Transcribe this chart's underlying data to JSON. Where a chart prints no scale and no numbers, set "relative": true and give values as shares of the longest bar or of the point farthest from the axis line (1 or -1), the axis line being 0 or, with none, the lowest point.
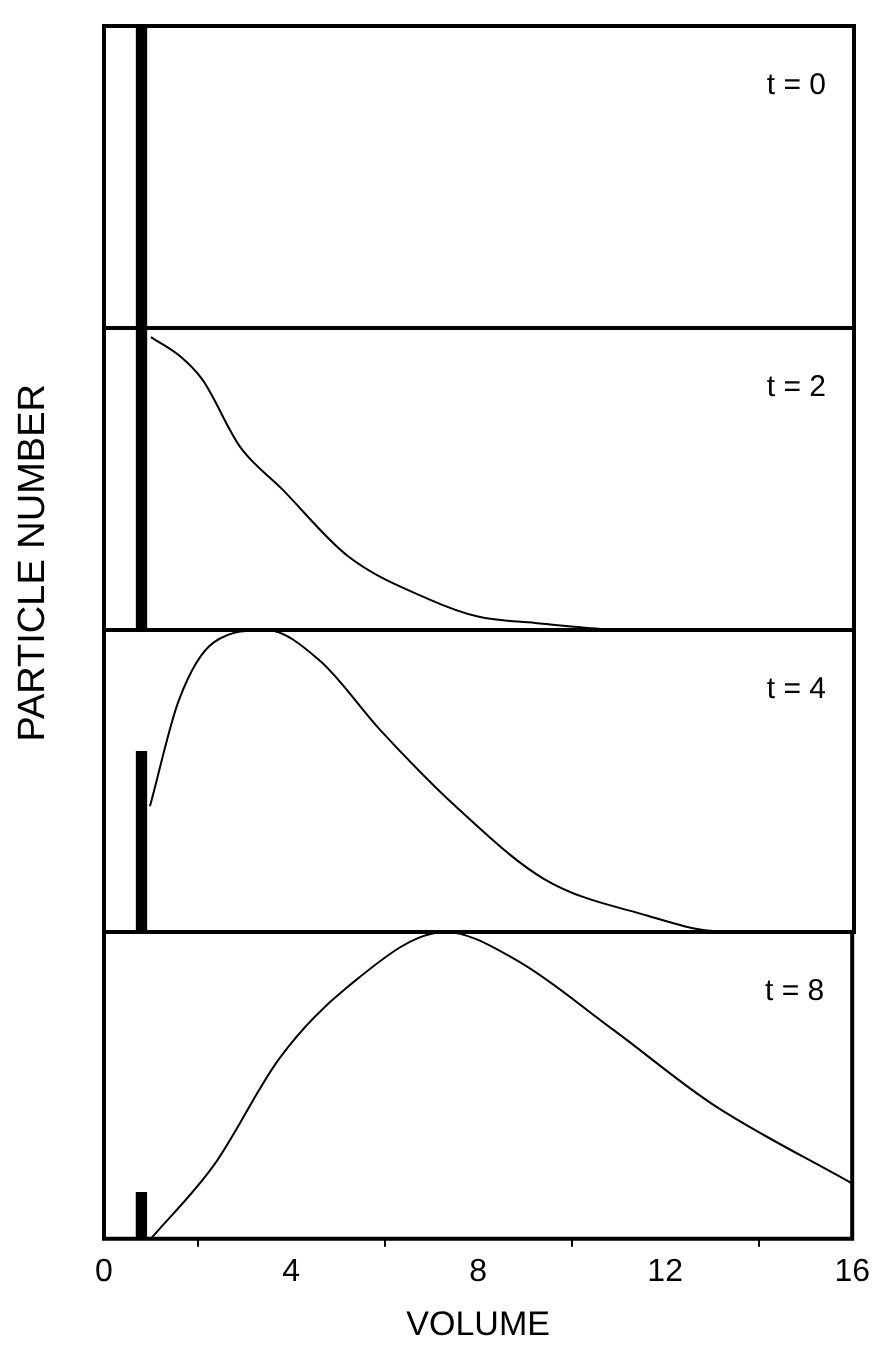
{
  "chart_data": [
    {
      "type": "bar",
      "title": "t = 0",
      "ylabel": "PARTICLE NUMBER",
      "relative": true,
      "xlim": [
        0,
        16
      ],
      "xticks": [
        0,
        4,
        8,
        12,
        16
      ],
      "tick_labels": false,
      "series": [
        {
          "color": "#000000",
          "x": [
            0.8
          ],
          "values": [
            1
          ]
        }
      ]
    },
    {
      "type": "line",
      "title": "t = 2",
      "relative": true,
      "xlim": [
        0,
        16
      ],
      "xticks": [
        0,
        4,
        8,
        12,
        16
      ],
      "tick_labels": false,
      "marker": "none",
      "series": [
        {
          "type": "bar",
          "color": "#000000",
          "x": [
            0.8
          ],
          "values": [
            1
          ]
        },
        {
          "color": "#000000",
          "x": [
            1,
            1.6,
            2.1,
            2.9,
            3.8,
            5.2,
            6.9,
            8,
            9.2,
            10.6,
            12,
            16
          ],
          "values": [
            0.97,
            0.91,
            0.83,
            0.61,
            0.47,
            0.25,
            0.11,
            0.05,
            0.03,
            0.01,
            0,
            0
          ]
        }
      ]
    },
    {
      "type": "line",
      "title": "t = 4",
      "relative": true,
      "xlim": [
        0,
        16
      ],
      "xticks": [
        0,
        4,
        8,
        12,
        16
      ],
      "tick_labels": false,
      "marker": "none",
      "series": [
        {
          "type": "bar",
          "color": "#000000",
          "x": [
            0.8
          ],
          "values": [
            0.6
          ]
        },
        {
          "color": "#000000",
          "x": [
            0.98,
            1.6,
            2.35,
            3.46,
            4.6,
            5.9,
            7.5,
            9.4,
            11.6,
            13,
            16
          ],
          "values": [
            0.42,
            0.77,
            0.96,
            1,
            0.9,
            0.67,
            0.42,
            0.18,
            0.06,
            0.01,
            0
          ]
        }
      ]
    },
    {
      "type": "line",
      "title": "t = 8",
      "xlabel": "VOLUME",
      "relative": true,
      "xlim": [
        0,
        16
      ],
      "xticks": [
        0,
        4,
        8,
        12,
        16
      ],
      "tick_labels": "x",
      "marker": "none",
      "series": [
        {
          "type": "bar",
          "color": "#000000",
          "x": [
            0.8
          ],
          "values": [
            0.15
          ]
        },
        {
          "color": "#000000",
          "x": [
            1,
            2.35,
            3.76,
            5.2,
            7.3,
            8.8,
            10.9,
            13,
            16
          ],
          "values": [
            0,
            0.24,
            0.59,
            0.82,
            1,
            0.91,
            0.68,
            0.44,
            0.18
          ]
        }
      ]
    }
  ]
}
